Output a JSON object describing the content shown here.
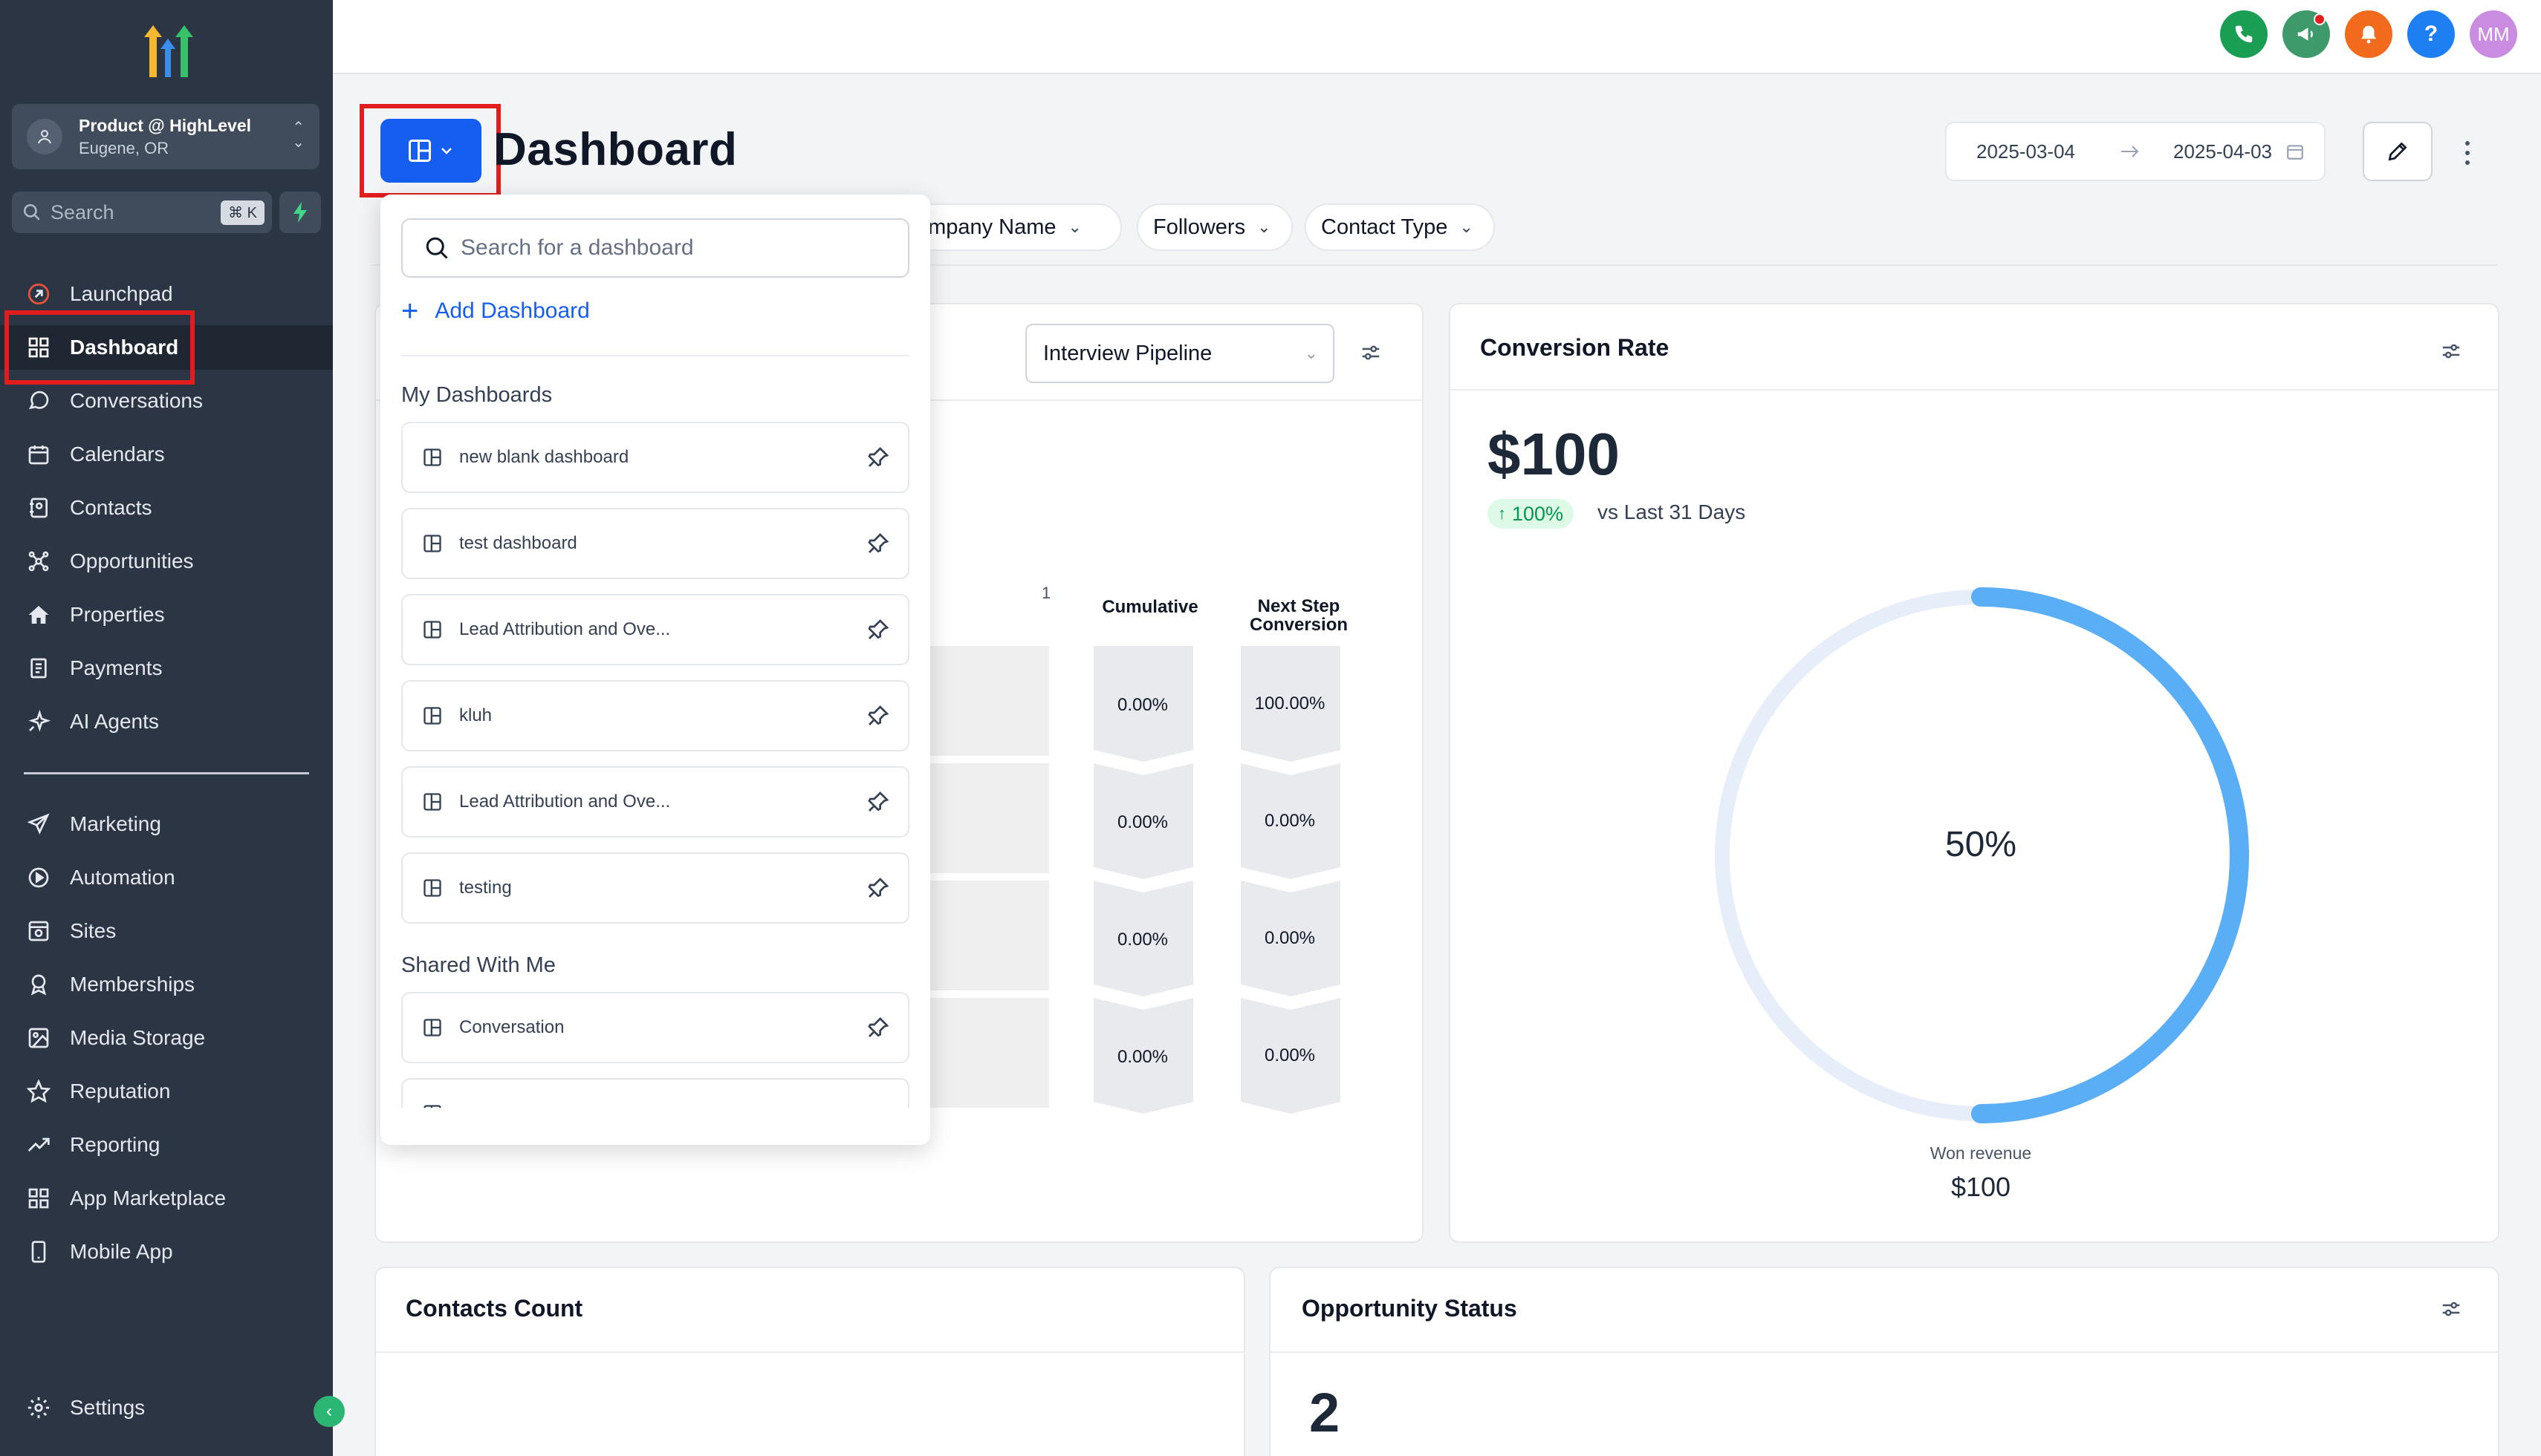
{
  "sidebar": {
    "account_name": "Product @ HighLevel",
    "account_location": "Eugene, OR",
    "search_placeholder": "Search",
    "search_shortcut": "⌘ K",
    "items": [
      {
        "label": "Launchpad",
        "icon": "rocket-icon"
      },
      {
        "label": "Dashboard",
        "icon": "grid-icon",
        "active": true
      },
      {
        "label": "Conversations",
        "icon": "chat-icon"
      },
      {
        "label": "Calendars",
        "icon": "calendar-icon"
      },
      {
        "label": "Contacts",
        "icon": "contacts-icon"
      },
      {
        "label": "Opportunities",
        "icon": "network-icon"
      },
      {
        "label": "Properties",
        "icon": "home-icon"
      },
      {
        "label": "Payments",
        "icon": "receipt-icon"
      },
      {
        "label": "AI Agents",
        "icon": "sparkle-icon"
      }
    ],
    "items2": [
      {
        "label": "Marketing",
        "icon": "send-icon"
      },
      {
        "label": "Automation",
        "icon": "automation-icon"
      },
      {
        "label": "Sites",
        "icon": "sites-icon"
      },
      {
        "label": "Memberships",
        "icon": "badge-icon"
      },
      {
        "label": "Media Storage",
        "icon": "image-icon"
      },
      {
        "label": "Reputation",
        "icon": "star-icon"
      },
      {
        "label": "Reporting",
        "icon": "trend-icon"
      },
      {
        "label": "App Marketplace",
        "icon": "apps-icon"
      },
      {
        "label": "Mobile App",
        "icon": "phone-icon"
      }
    ],
    "settings_label": "Settings"
  },
  "topbar": {
    "avatar_initials": "MM",
    "help_label": "?"
  },
  "header": {
    "title": "Dashboard",
    "date_start": "2025-03-04",
    "date_end": "2025-04-03"
  },
  "filters": [
    "Company Name",
    "Followers",
    "Contact Type"
  ],
  "pipeline_card": {
    "pipeline_select": "Interview Pipeline",
    "stage_marker": "1",
    "col_cumulative": "Cumulative",
    "col_next_step_1": "Next Step",
    "col_next_step_2": "Conversion",
    "cumulative": [
      "0.00%",
      "0.00%",
      "0.00%",
      "0.00%"
    ],
    "next_step": [
      "100.00%",
      "0.00%",
      "0.00%",
      "0.00%"
    ]
  },
  "conversion_card": {
    "title": "Conversion Rate",
    "value": "$100",
    "change": "100%",
    "change_caption": "vs Last 31 Days",
    "donut_percent": 50,
    "donut_label": "50%",
    "footer_label": "Won revenue",
    "footer_value": "$100",
    "colors": {
      "filled": "#5aaef5",
      "track": "#e6eef9"
    }
  },
  "contacts_card": {
    "title": "Contacts Count"
  },
  "opportunity_card": {
    "title": "Opportunity Status",
    "value": "2"
  },
  "dropdown": {
    "search_placeholder": "Search for a dashboard",
    "add_label": "Add Dashboard",
    "my_heading": "My Dashboards",
    "my_items": [
      "new blank dashboard",
      "test dashboard",
      "Lead Attribution and Ove...",
      "kluh",
      "Lead Attribution and Ove...",
      "testing"
    ],
    "shared_heading": "Shared With Me",
    "shared_items": [
      "Conversation"
    ]
  }
}
